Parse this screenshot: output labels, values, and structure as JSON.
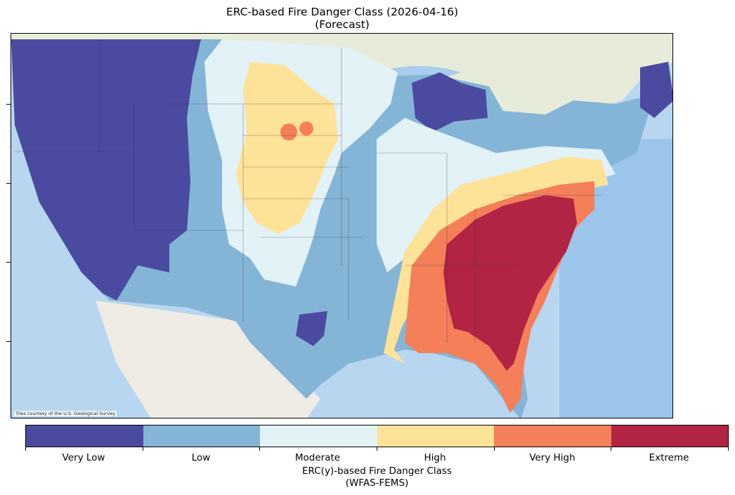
{
  "title": {
    "line1": "ERC-based Fire Danger Class (2026-04-16)",
    "line2": "(Forecast)"
  },
  "attribution": "Tiles courtesy of the U.S. Geological Survey",
  "colorbar": {
    "title_line1": "ERC(y)-based Fire Danger Class",
    "title_line2": "(WFAS-FEMS)",
    "classes": [
      {
        "label": "Very Low",
        "color": "#4a4ba0"
      },
      {
        "label": "Low",
        "color": "#85b5d6"
      },
      {
        "label": "Moderate",
        "color": "#e2f2f7"
      },
      {
        "label": "High",
        "color": "#fde398"
      },
      {
        "label": "Very High",
        "color": "#f47f59"
      },
      {
        "label": "Extreme",
        "color": "#b22443"
      }
    ]
  },
  "basemap_colors": {
    "ocean": "#b8d6f0",
    "ocean_deep": "#8fbde8",
    "land": "#f1eee6",
    "great_lakes": "#a9cdec"
  }
}
